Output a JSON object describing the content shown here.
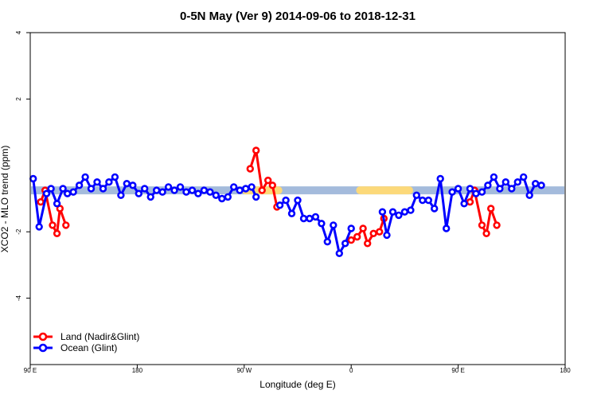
{
  "chart_data": {
    "type": "line",
    "title": "0-5N May (Ver 9)   2014-09-06 to 2018-12-31",
    "xlabel": "Longitude (deg E)",
    "ylabel": "XCO2 - MLO trend (ppm)",
    "xlim": [
      90,
      450
    ],
    "ylim": [
      -6,
      4
    ],
    "x_ticks": [
      {
        "value": 90,
        "label": "90 E"
      },
      {
        "value": 162,
        "label": "180"
      },
      {
        "value": 234,
        "label": "90 W"
      },
      {
        "value": 306,
        "label": "0"
      },
      {
        "value": 378,
        "label": "90 E"
      },
      {
        "value": 450,
        "label": "180"
      }
    ],
    "y_ticks": [
      4,
      2,
      -2,
      -4
    ],
    "legend_position": "bottom-left",
    "grid": false,
    "series": [
      {
        "name": "Land (Nadir&Glint)",
        "color": "#ff0000",
        "segments": [
          [
            [
              97,
              -1.1
            ],
            [
              100,
              -0.75
            ],
            [
              105,
              -1.8
            ],
            [
              108,
              -2.05
            ],
            [
              110,
              -1.3
            ],
            [
              114,
              -1.8
            ]
          ],
          [
            [
              238,
              -0.1
            ],
            [
              242,
              0.45
            ],
            [
              246,
              -0.75
            ],
            [
              250,
              -0.45
            ],
            [
              253,
              -0.6
            ],
            [
              256,
              -1.25
            ]
          ],
          [
            [
              306,
              -2.25
            ],
            [
              310,
              -2.15
            ],
            [
              314,
              -1.9
            ],
            [
              317,
              -2.35
            ],
            [
              321,
              -2.05
            ],
            [
              325,
              -2.0
            ],
            [
              328,
              -1.6
            ]
          ],
          [
            [
              386,
              -1.1
            ],
            [
              389,
              -0.75
            ],
            [
              394,
              -1.8
            ],
            [
              397,
              -2.05
            ],
            [
              400,
              -1.3
            ],
            [
              404,
              -1.8
            ]
          ]
        ]
      },
      {
        "name": "Ocean (Glint)",
        "color": "#0000ff",
        "segments": [
          [
            [
              92,
              -0.4
            ],
            [
              96,
              -1.85
            ],
            [
              101,
              -0.85
            ],
            [
              104,
              -0.7
            ],
            [
              108,
              -1.15
            ],
            [
              112,
              -0.7
            ],
            [
              115,
              -0.85
            ],
            [
              119,
              -0.8
            ],
            [
              123,
              -0.6
            ],
            [
              127,
              -0.35
            ],
            [
              131,
              -0.7
            ],
            [
              135,
              -0.5
            ],
            [
              139,
              -0.7
            ],
            [
              143,
              -0.5
            ],
            [
              147,
              -0.35
            ],
            [
              151,
              -0.9
            ],
            [
              155,
              -0.55
            ],
            [
              159,
              -0.6
            ],
            [
              163,
              -0.85
            ],
            [
              167,
              -0.7
            ],
            [
              171,
              -0.95
            ],
            [
              175,
              -0.75
            ],
            [
              179,
              -0.8
            ],
            [
              183,
              -0.65
            ],
            [
              187,
              -0.75
            ],
            [
              191,
              -0.65
            ],
            [
              195,
              -0.8
            ],
            [
              199,
              -0.75
            ],
            [
              203,
              -0.85
            ],
            [
              207,
              -0.75
            ],
            [
              211,
              -0.8
            ],
            [
              215,
              -0.9
            ],
            [
              219,
              -1.0
            ],
            [
              223,
              -0.95
            ],
            [
              227,
              -0.65
            ],
            [
              231,
              -0.75
            ],
            [
              235,
              -0.7
            ],
            [
              239,
              -0.65
            ],
            [
              242,
              -0.95
            ]
          ],
          [
            [
              258,
              -1.2
            ],
            [
              262,
              -1.05
            ],
            [
              266,
              -1.45
            ],
            [
              270,
              -1.05
            ],
            [
              274,
              -1.6
            ],
            [
              278,
              -1.6
            ],
            [
              282,
              -1.55
            ],
            [
              286,
              -1.75
            ],
            [
              290,
              -2.3
            ],
            [
              294,
              -1.8
            ],
            [
              298,
              -2.65
            ],
            [
              302,
              -2.35
            ],
            [
              306,
              -1.9
            ]
          ],
          [
            [
              327,
              -1.4
            ],
            [
              330,
              -2.1
            ],
            [
              334,
              -1.4
            ],
            [
              338,
              -1.5
            ],
            [
              342,
              -1.4
            ],
            [
              346,
              -1.35
            ],
            [
              350,
              -0.9
            ],
            [
              354,
              -1.05
            ],
            [
              358,
              -1.05
            ],
            [
              362,
              -1.3
            ],
            [
              366,
              -0.4
            ],
            [
              370,
              -1.9
            ],
            [
              374,
              -0.8
            ],
            [
              378,
              -0.7
            ],
            [
              382,
              -1.15
            ],
            [
              386,
              -0.7
            ],
            [
              390,
              -0.85
            ],
            [
              394,
              -0.8
            ],
            [
              398,
              -0.6
            ],
            [
              402,
              -0.35
            ],
            [
              406,
              -0.7
            ],
            [
              410,
              -0.5
            ],
            [
              414,
              -0.7
            ],
            [
              418,
              -0.5
            ],
            [
              422,
              -0.35
            ],
            [
              426,
              -0.9
            ],
            [
              430,
              -0.55
            ],
            [
              434,
              -0.6
            ]
          ]
        ]
      }
    ],
    "trend_band": {
      "value": -0.75,
      "color": "#a4bbdc",
      "highlight_color": "#fcd97a",
      "highlight_ranges": [
        [
          235,
          257
        ],
        [
          312,
          345
        ]
      ]
    }
  }
}
